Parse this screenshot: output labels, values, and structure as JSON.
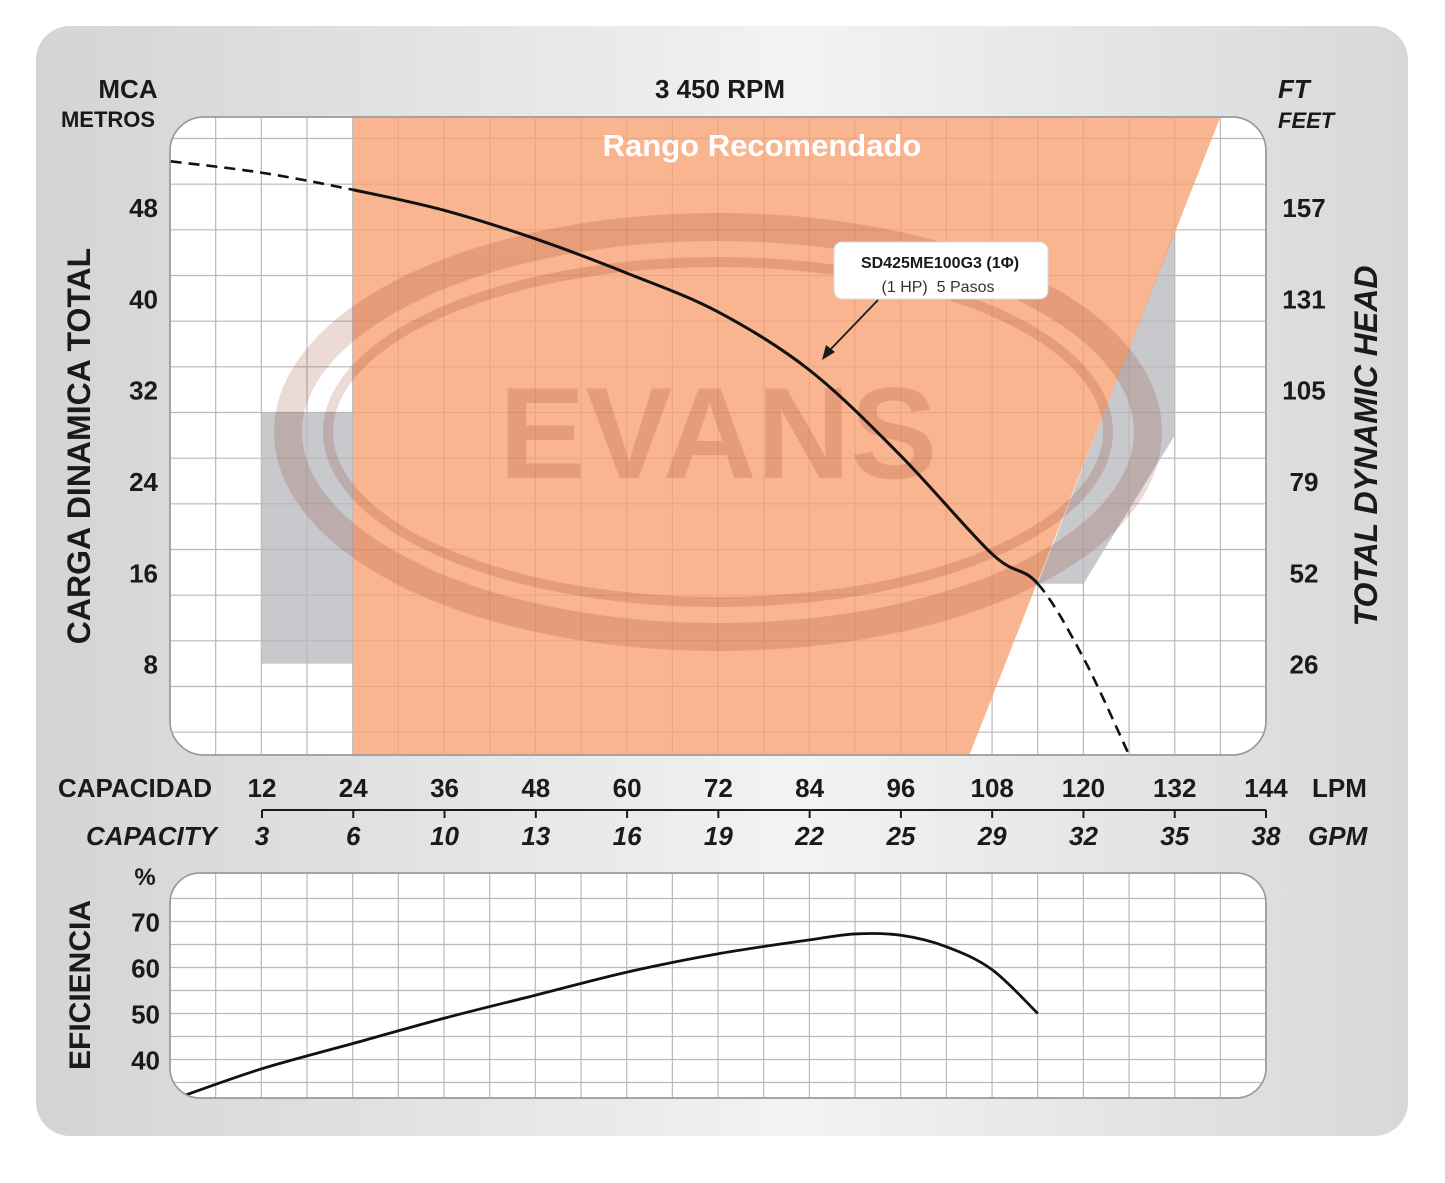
{
  "chart_data": [
    {
      "type": "line",
      "title": "3 450 RPM",
      "range_label": "Rango Recomendado",
      "watermark": "EVANS",
      "left_axis_unit_top": "MCA",
      "left_axis_unit_bottom": "METROS",
      "right_axis_unit_top": "FT",
      "right_axis_unit_bottom": "FEET",
      "ylabel": "CARGA DINAMICA TOTAL",
      "ylabel_right": "TOTAL DYNAMIC HEAD",
      "x_label_lpm": "CAPACIDAD",
      "x_unit_lpm": "LPM",
      "x_label_gpm": "CAPACITY",
      "x_unit_gpm": "GPM",
      "xlim": [
        0,
        144
      ],
      "ylim": [
        0,
        56
      ],
      "x_ticks_lpm": [
        12,
        24,
        36,
        48,
        60,
        72,
        84,
        96,
        108,
        120,
        132,
        144
      ],
      "x_ticks_gpm": [
        "3",
        "6",
        "10",
        "13",
        "16",
        "19",
        "22",
        "25",
        "29",
        "32",
        "35",
        "38"
      ],
      "y_ticks": [
        8,
        16,
        24,
        32,
        40,
        48
      ],
      "y_ticks_right": [
        "26",
        "52",
        "79",
        "105",
        "131",
        "157"
      ],
      "recommended_range_lpm": [
        24,
        138
      ],
      "grid": true,
      "series": [
        {
          "name": "SD425ME100G3 (1Φ)",
          "detail": "(1 HP)  5 Pasos",
          "x": [
            0,
            12,
            24,
            36,
            48,
            60,
            72,
            84,
            96,
            108,
            114,
            120,
            126
          ],
          "y": [
            52,
            51,
            49.5,
            47.7,
            45.2,
            42.2,
            38.8,
            33.7,
            26.2,
            17.6,
            15.0,
            8.5,
            0
          ],
          "dashed_below_lpm": 24,
          "dashed_above_lpm": 114
        }
      ]
    },
    {
      "type": "line",
      "ylabel": "EFICIENCIA",
      "y_unit": "%",
      "ylim": [
        30,
        75
      ],
      "y_ticks": [
        40,
        50,
        60,
        70
      ],
      "xlim": [
        0,
        144
      ],
      "grid": true,
      "series": [
        {
          "name": "",
          "x": [
            0,
            12,
            24,
            36,
            48,
            60,
            72,
            84,
            90,
            96,
            102,
            108,
            114
          ],
          "y": [
            32,
            38,
            43.5,
            49,
            54,
            59,
            63,
            66,
            67.3,
            67,
            64.5,
            59.5,
            50
          ]
        }
      ]
    }
  ]
}
